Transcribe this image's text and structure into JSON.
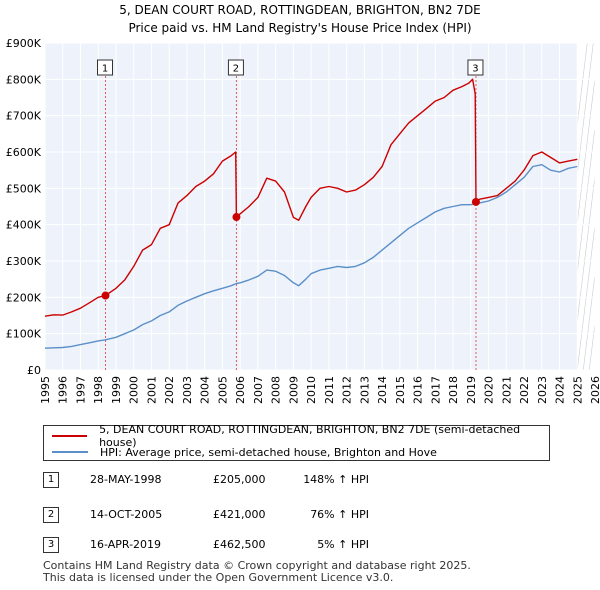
{
  "chart_data": {
    "type": "line",
    "title": "5, DEAN COURT ROAD, ROTTINGDEAN, BRIGHTON, BN2 7DE",
    "subtitle": "Price paid vs. HM Land Registry's House Price Index (HPI)",
    "xlabel": "",
    "ylabel": "",
    "xlim": [
      1995,
      2026
    ],
    "ylim": [
      0,
      900000
    ],
    "x_ticks": [
      "1995",
      "1996",
      "1997",
      "1998",
      "1999",
      "2000",
      "2001",
      "2002",
      "2003",
      "2004",
      "2005",
      "2006",
      "2007",
      "2008",
      "2009",
      "2010",
      "2011",
      "2012",
      "2013",
      "2014",
      "2015",
      "2016",
      "2017",
      "2018",
      "2019",
      "2020",
      "2021",
      "2022",
      "2023",
      "2024",
      "2025",
      "2026"
    ],
    "y_ticks": [
      {
        "value": 0,
        "label": "£0"
      },
      {
        "value": 100000,
        "label": "£100K"
      },
      {
        "value": 200000,
        "label": "£200K"
      },
      {
        "value": 300000,
        "label": "£300K"
      },
      {
        "value": 400000,
        "label": "£400K"
      },
      {
        "value": 500000,
        "label": "£500K"
      },
      {
        "value": 600000,
        "label": "£600K"
      },
      {
        "value": 700000,
        "label": "£700K"
      },
      {
        "value": 800000,
        "label": "£800K"
      },
      {
        "value": 900000,
        "label": "£900K"
      }
    ],
    "grid": true,
    "shaded_future_from": 2025.0,
    "series": [
      {
        "name": "5, DEAN COURT ROAD, ROTTINGDEAN, BRIGHTON, BN2 7DE (semi-detached house)",
        "color": "#cc0000",
        "x": [
          1995.0,
          1995.5,
          1996.0,
          1996.5,
          1997.0,
          1997.5,
          1998.0,
          1998.41,
          1999.0,
          1999.5,
          2000.0,
          2000.5,
          2001.0,
          2001.5,
          2002.0,
          2002.5,
          2003.0,
          2003.5,
          2004.0,
          2004.5,
          2005.0,
          2005.5,
          2005.75,
          2005.79,
          2006.0,
          2006.5,
          2007.0,
          2007.5,
          2008.0,
          2008.5,
          2009.0,
          2009.3,
          2009.7,
          2010.0,
          2010.5,
          2011.0,
          2011.5,
          2012.0,
          2012.5,
          2013.0,
          2013.5,
          2014.0,
          2014.5,
          2015.0,
          2015.5,
          2016.0,
          2016.5,
          2017.0,
          2017.5,
          2018.0,
          2018.5,
          2018.9,
          2019.1,
          2019.25,
          2019.29,
          2019.5,
          2020.0,
          2020.5,
          2021.0,
          2021.5,
          2022.0,
          2022.5,
          2023.0,
          2023.5,
          2024.0,
          2024.5,
          2025.0
        ],
        "values": [
          148000,
          152000,
          151000,
          160000,
          170000,
          185000,
          200000,
          205000,
          225000,
          248000,
          285000,
          330000,
          345000,
          390000,
          400000,
          460000,
          480000,
          505000,
          520000,
          540000,
          575000,
          590000,
          600000,
          421000,
          430000,
          450000,
          475000,
          528000,
          520000,
          490000,
          420000,
          412000,
          450000,
          475000,
          500000,
          505000,
          500000,
          490000,
          495000,
          510000,
          530000,
          560000,
          620000,
          650000,
          680000,
          700000,
          720000,
          740000,
          750000,
          770000,
          780000,
          790000,
          800000,
          760000,
          462500,
          470000,
          475000,
          480000,
          500000,
          520000,
          550000,
          590000,
          600000,
          585000,
          570000,
          575000,
          580000
        ]
      },
      {
        "name": "HPI: Average price, semi-detached house, Brighton and Hove",
        "color": "#5b8fc9",
        "x": [
          1995.0,
          1995.5,
          1996.0,
          1996.5,
          1997.0,
          1997.5,
          1998.0,
          1998.41,
          1999.0,
          1999.5,
          2000.0,
          2000.5,
          2001.0,
          2001.5,
          2002.0,
          2002.5,
          2003.0,
          2003.5,
          2004.0,
          2004.5,
          2005.0,
          2005.5,
          2005.79,
          2006.0,
          2006.5,
          2007.0,
          2007.5,
          2008.0,
          2008.5,
          2009.0,
          2009.3,
          2009.7,
          2010.0,
          2010.5,
          2011.0,
          2011.5,
          2012.0,
          2012.5,
          2013.0,
          2013.5,
          2014.0,
          2014.5,
          2015.0,
          2015.5,
          2016.0,
          2016.5,
          2017.0,
          2017.5,
          2018.0,
          2018.5,
          2019.0,
          2019.29,
          2019.5,
          2020.0,
          2020.5,
          2021.0,
          2021.5,
          2022.0,
          2022.5,
          2023.0,
          2023.5,
          2024.0,
          2024.5,
          2025.0
        ],
        "values": [
          60000,
          61000,
          62000,
          65000,
          70000,
          75000,
          80000,
          83000,
          90000,
          100000,
          110000,
          125000,
          135000,
          150000,
          160000,
          178000,
          190000,
          200000,
          210000,
          218000,
          225000,
          232000,
          238000,
          240000,
          248000,
          258000,
          275000,
          272000,
          260000,
          240000,
          232000,
          250000,
          265000,
          275000,
          280000,
          285000,
          282000,
          285000,
          295000,
          310000,
          330000,
          350000,
          370000,
          390000,
          405000,
          420000,
          435000,
          445000,
          450000,
          455000,
          455000,
          458000,
          460000,
          465000,
          475000,
          490000,
          510000,
          530000,
          560000,
          565000,
          550000,
          545000,
          555000,
          560000
        ]
      }
    ],
    "sales": [
      {
        "label": "1",
        "x": 1998.41,
        "value": 205000
      },
      {
        "label": "2",
        "x": 2005.79,
        "value": 421000
      },
      {
        "label": "3",
        "x": 2019.29,
        "value": 462500
      }
    ]
  },
  "legend": {
    "items": [
      {
        "label": "5, DEAN COURT ROAD, ROTTINGDEAN, BRIGHTON, BN2 7DE (semi-detached house)",
        "color": "#cc0000"
      },
      {
        "label": "HPI: Average price, semi-detached house, Brighton and Hove",
        "color": "#5b8fc9"
      }
    ]
  },
  "sales_table": [
    {
      "num": "1",
      "date": "28-MAY-1998",
      "price": "£205,000",
      "hpi": "148% ↑ HPI"
    },
    {
      "num": "2",
      "date": "14-OCT-2005",
      "price": "£421,000",
      "hpi": "76% ↑ HPI"
    },
    {
      "num": "3",
      "date": "16-APR-2019",
      "price": "£462,500",
      "hpi": "5% ↑ HPI"
    }
  ],
  "footer": {
    "line1": "Contains HM Land Registry data © Crown copyright and database right 2025.",
    "line2": "This data is licensed under the Open Government Licence v3.0."
  }
}
